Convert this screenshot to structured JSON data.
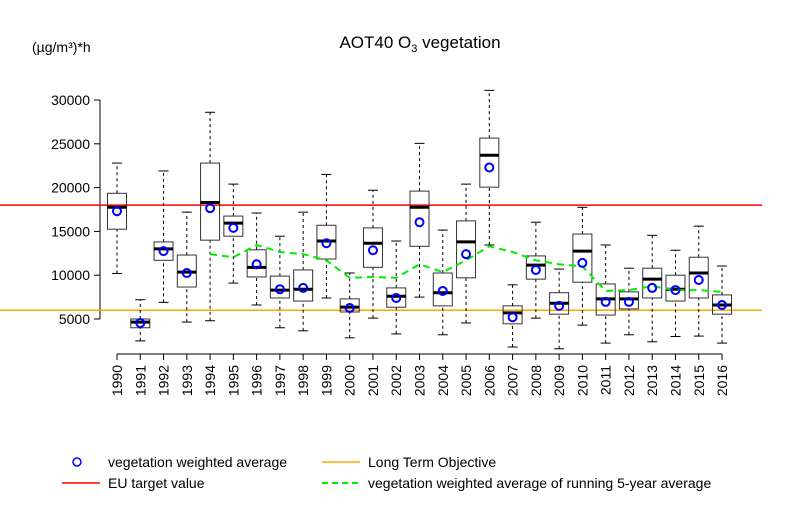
{
  "chart_data": {
    "type": "boxplot",
    "title": "AOT40 O",
    "title_sub": "3",
    "title_rest": " vegetation",
    "ylabel": "(µg/m³)*h",
    "ylim": [
      0,
      32000
    ],
    "yticks": [
      5000,
      10000,
      15000,
      20000,
      25000,
      30000
    ],
    "grid": false,
    "categories": [
      "1990",
      "1991",
      "1992",
      "1993",
      "1994",
      "1995",
      "1996",
      "1997",
      "1998",
      "1999",
      "2000",
      "2001",
      "2002",
      "2003",
      "2004",
      "2005",
      "2006",
      "2007",
      "2008",
      "2009",
      "2010",
      "2011",
      "2012",
      "2013",
      "2014",
      "2015",
      "2016"
    ],
    "boxes": [
      [
        10200,
        15250,
        17750,
        19350,
        22800
      ],
      [
        2500,
        4000,
        4650,
        5000,
        7200
      ],
      [
        6900,
        11700,
        13000,
        13800,
        21900
      ],
      [
        4650,
        8650,
        10350,
        12300,
        17200
      ],
      [
        4800,
        14000,
        18300,
        22800,
        28600
      ],
      [
        9100,
        14450,
        15950,
        16750,
        20400
      ],
      [
        6600,
        9800,
        10900,
        12900,
        17100
      ],
      [
        4000,
        7400,
        8300,
        9900,
        14450
      ],
      [
        3650,
        7050,
        8400,
        10600,
        17200
      ],
      [
        7400,
        11850,
        13900,
        15700,
        21500
      ],
      [
        2850,
        5800,
        6350,
        7300,
        10250
      ],
      [
        5100,
        10900,
        13650,
        15400,
        19700
      ],
      [
        3300,
        6350,
        7600,
        8550,
        13900
      ],
      [
        7500,
        13300,
        17750,
        19600,
        25050
      ],
      [
        3200,
        6500,
        8000,
        10250,
        15150
      ],
      [
        4550,
        9700,
        13800,
        16200,
        20400
      ],
      [
        13450,
        20050,
        23700,
        25650,
        31100
      ],
      [
        1800,
        4450,
        5700,
        6500,
        8900
      ],
      [
        5100,
        9550,
        11150,
        12200,
        16050
      ],
      [
        1600,
        5550,
        6800,
        8000,
        10700
      ],
      [
        4300,
        9200,
        12750,
        14700,
        17750
      ],
      [
        2250,
        5450,
        7300,
        9000,
        13450
      ],
      [
        3200,
        6150,
        7300,
        8100,
        10800
      ],
      [
        2400,
        7400,
        9550,
        10800,
        14550
      ],
      [
        3000,
        7050,
        8400,
        10000,
        12850
      ],
      [
        3050,
        7400,
        10250,
        12050,
        15600
      ],
      [
        2250,
        5550,
        6600,
        7750,
        11050
      ]
    ],
    "series": [
      {
        "name": "vegetation weighted average",
        "color": "#0000ff",
        "values": [
          17300,
          4550,
          12750,
          10250,
          17650,
          15400,
          11250,
          8400,
          8550,
          13650,
          6250,
          12850,
          7400,
          16050,
          8200,
          12400,
          22300,
          5200,
          10600,
          6500,
          11400,
          6950,
          6950,
          8550,
          8300,
          9450,
          6600
        ]
      },
      {
        "name": "vegetation weighted average of running 5-year average",
        "color": "#00ee00",
        "values": [
          null,
          null,
          null,
          null,
          12400,
          12050,
          13450,
          12650,
          12400,
          11700,
          9700,
          9800,
          9700,
          11250,
          10350,
          11700,
          13300,
          12650,
          11700,
          11250,
          11000,
          8200,
          8300,
          8750,
          8300,
          8300,
          8100
        ]
      }
    ],
    "reference_lines": [
      {
        "name": "EU target value",
        "value": 18000,
        "color": "#ff0000"
      },
      {
        "name": "Long Term Objective",
        "value": 6000,
        "color": "#ffa500"
      }
    ],
    "legend_placement": "bottom"
  }
}
